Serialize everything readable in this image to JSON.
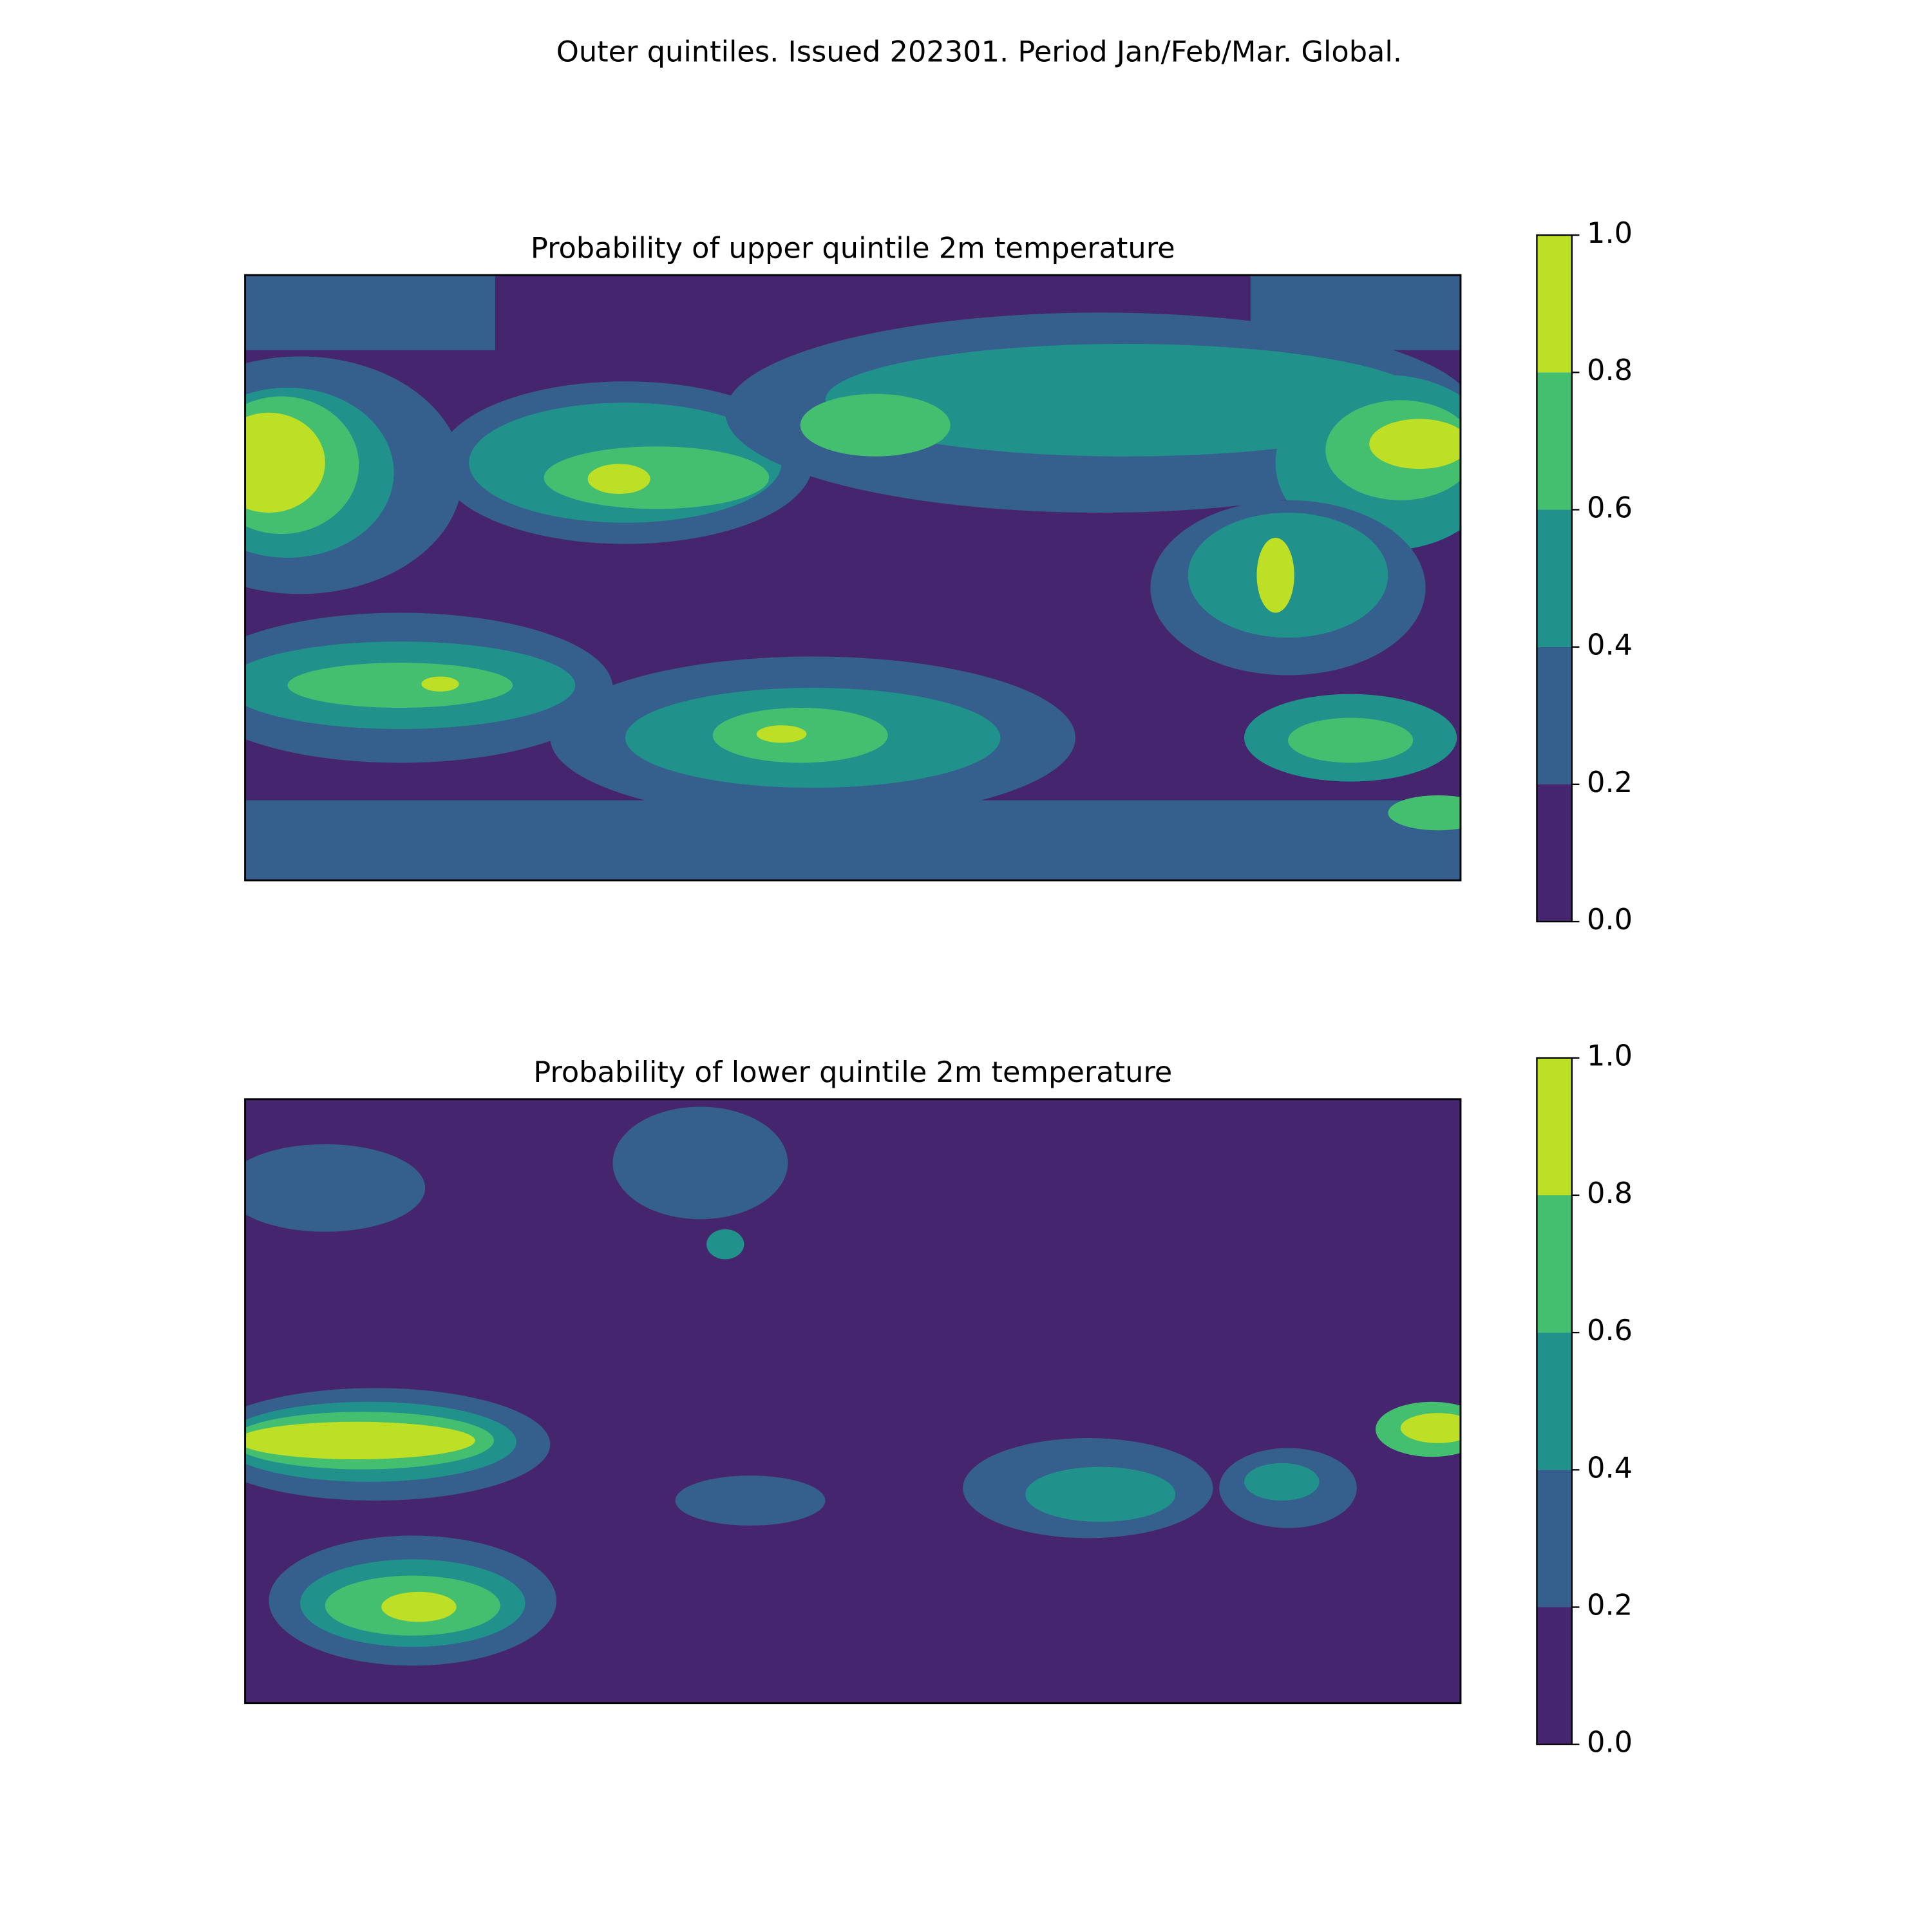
{
  "title": "Outer quintiles. Issued 202301. Period Jan/Feb/Mar. Global.",
  "chart_data": [
    {
      "type": "contourf",
      "title": "Probability of upper quintile 2m temperature",
      "colors": [
        "#46256f",
        "#355f8d",
        "#21918c",
        "#44bf70",
        "#bddf26"
      ],
      "clim": [
        0,
        1
      ],
      "cticks": [
        {
          "value": 0,
          "label": "0.0"
        },
        0.2,
        0.4,
        0.6,
        0.8,
        {
          "value": 1,
          "label": "1.0"
        }
      ]
    },
    {
      "type": "contourf",
      "title": "Probability of lower quintile 2m temperature",
      "colors": [
        "#46256f",
        "#355f8d",
        "#21918c",
        "#44bf70",
        "#bddf26"
      ],
      "clim": [
        0,
        1
      ],
      "cticks": [
        {
          "value": 0,
          "label": "0.0"
        },
        0.2,
        0.4,
        0.6,
        0.8,
        {
          "value": 1,
          "label": "1.0"
        }
      ]
    }
  ]
}
